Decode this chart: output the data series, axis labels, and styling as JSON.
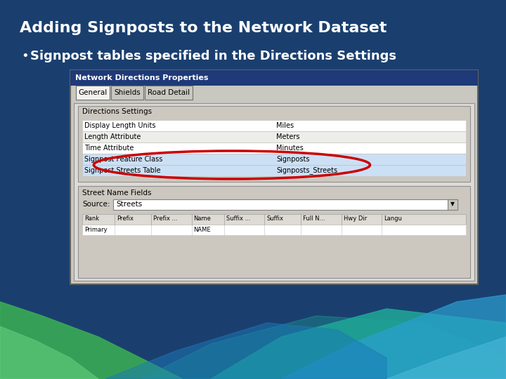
{
  "title": "Adding Signposts to the Network Dataset",
  "bullet_text": "Signpost tables specified in the Directions Settings",
  "bg_color": "#1a3f6f",
  "title_color": "#ffffff",
  "bullet_color": "#ffffff",
  "dialog_title": "Network Directions Properties",
  "dialog_title_bg": "#1e3a78",
  "tab_labels": [
    "General",
    "Shields",
    "Road Detail"
  ],
  "section1_label": "Directions Settings",
  "table_rows": [
    [
      "Display Length Units",
      "Miles"
    ],
    [
      "Length Attribute",
      "Meters"
    ],
    [
      "Time Attribute",
      "Minutes"
    ],
    [
      "Signpost Feature Class",
      "Signposts"
    ],
    [
      "Signpost Streets Table",
      "Signposts_Streets"
    ]
  ],
  "section2_label": "Street Name Fields",
  "source_label": "Source:",
  "source_value": "Streets",
  "col_headers": [
    "Rank",
    "Prefix",
    "Prefix ...",
    "Name",
    "Suffix ...",
    "Suffix",
    "Full N...",
    "Hwy Dir",
    "Langu"
  ],
  "data_rows": [
    [
      "Primary",
      "",
      "",
      "NAME",
      "",
      "",
      "",
      "",
      ""
    ]
  ],
  "highlight_rows": [
    3,
    4
  ],
  "ellipse_color": "#cc0000",
  "wave_colors": {
    "green1": "#3aaa55",
    "green2": "#5dc878",
    "teal1": "#1fa898",
    "blue1": "#2a9fd0",
    "blue2": "#1a7ab8",
    "blue3": "#4ab8d8"
  }
}
